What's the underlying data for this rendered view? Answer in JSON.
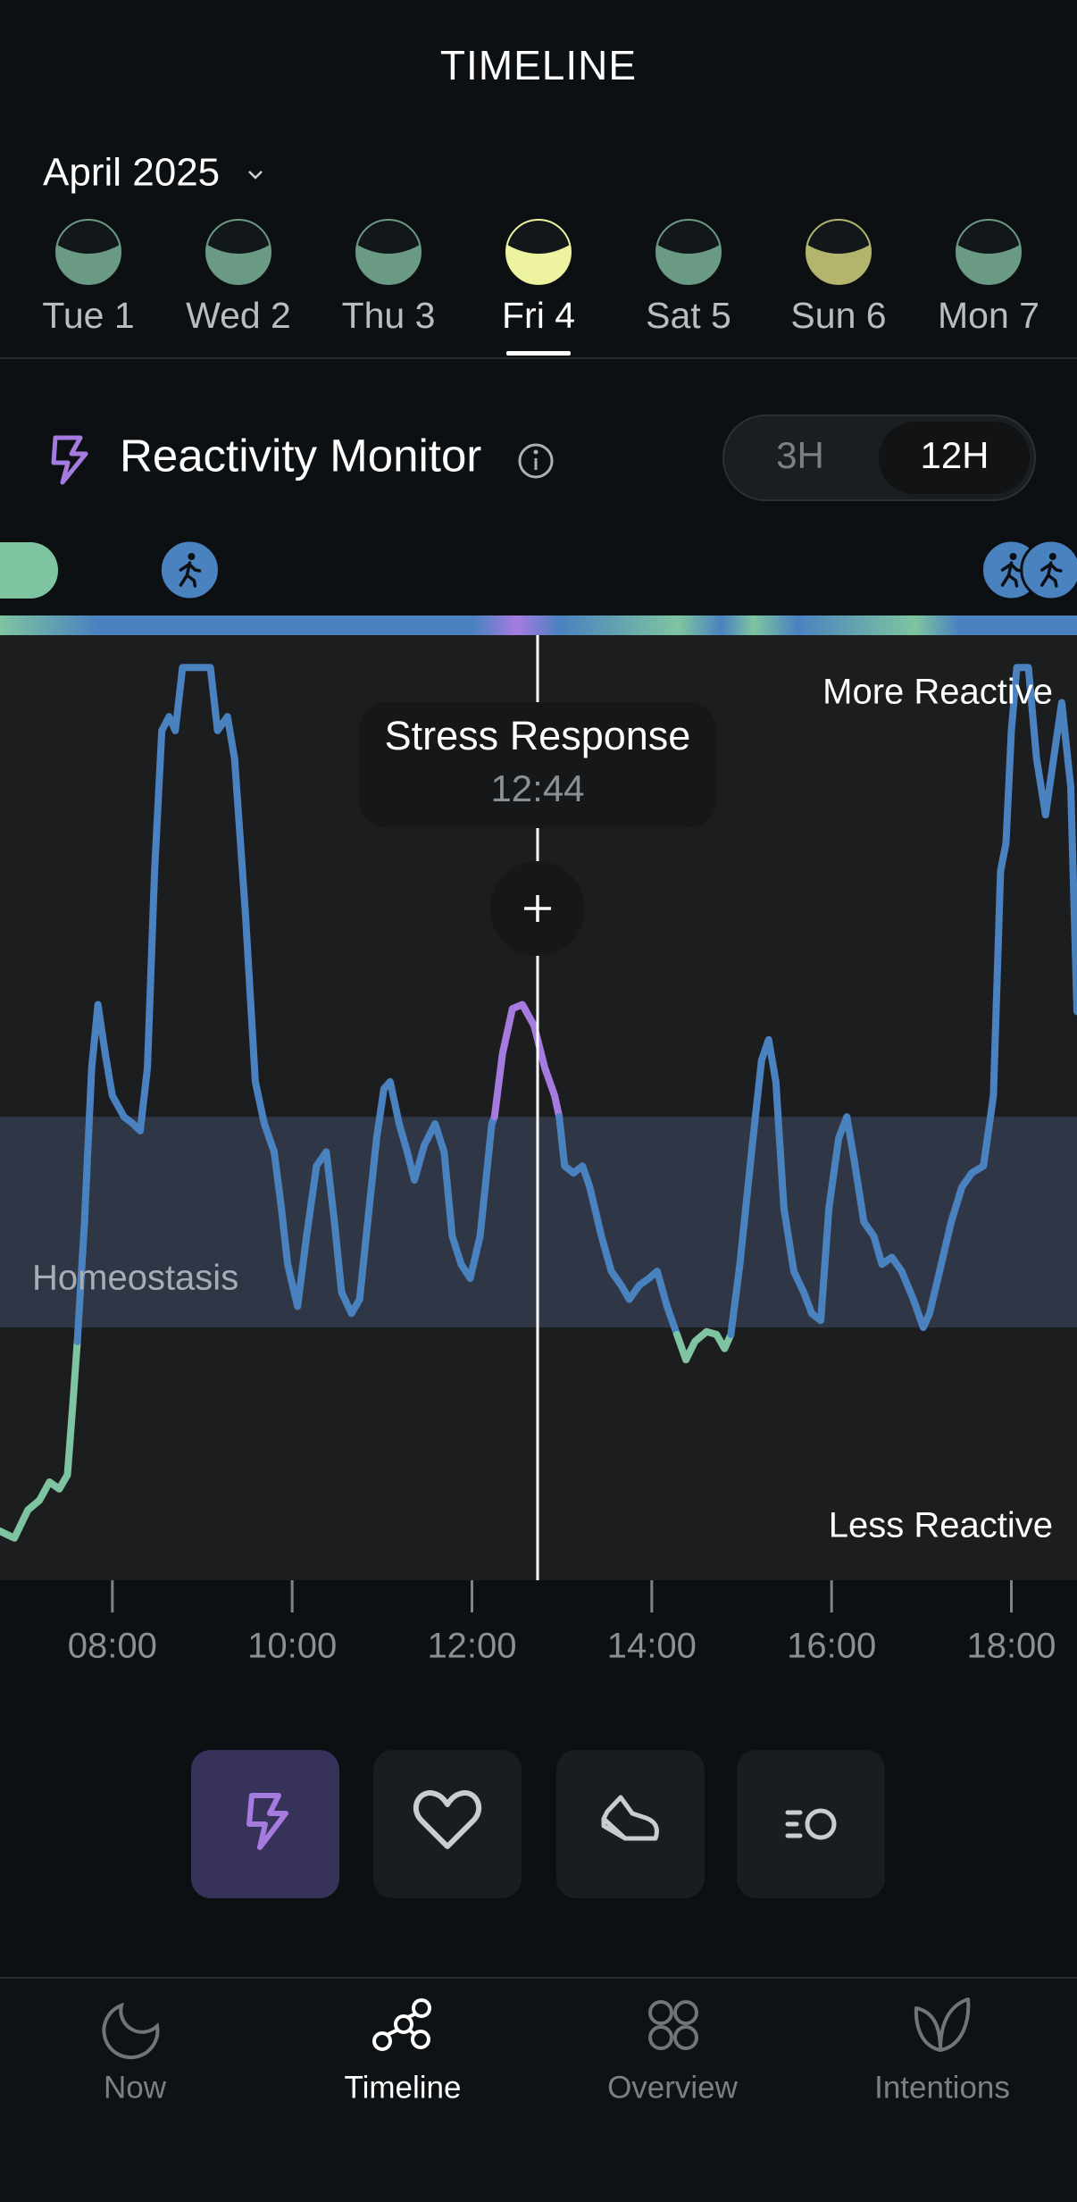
{
  "header": {
    "title": "TIMELINE",
    "month": "April 2025"
  },
  "days": [
    {
      "label": "Tue 1",
      "color": "#6b9a84"
    },
    {
      "label": "Wed 2",
      "color": "#6b9a84"
    },
    {
      "label": "Thu 3",
      "color": "#6b9a84"
    },
    {
      "label": "Fri 4",
      "color": "#eef3a0",
      "selected": true
    },
    {
      "label": "Sat 5",
      "color": "#6b9a84"
    },
    {
      "label": "Sun 6",
      "color": "#b3b46e"
    },
    {
      "label": "Mon 7",
      "color": "#6b9a84"
    }
  ],
  "monitor": {
    "title": "Reactivity Monitor",
    "ranges": [
      "3H",
      "12H"
    ]
  },
  "chart_data": {
    "type": "line",
    "labels": {
      "upper": "More Reactive",
      "lower": "Less Reactive",
      "band": "Homeostasis"
    },
    "tooltip": {
      "title": "Stress Response",
      "time": "12:44"
    },
    "cursor_x": 12.73,
    "homeostasis": [
      18,
      33
    ],
    "events_x": [
      8.86,
      18.0,
      18.44
    ],
    "xlim": [
      6.75,
      18.73
    ],
    "xticks": [
      {
        "value": 8,
        "label": "08:00"
      },
      {
        "value": 10,
        "label": "10:00"
      },
      {
        "value": 12,
        "label": "12:00"
      },
      {
        "value": 14,
        "label": "14:00"
      },
      {
        "value": 16,
        "label": "16:00"
      },
      {
        "value": 18,
        "label": "18:00"
      }
    ],
    "ylim": [
      0,
      67.3
    ],
    "series": [
      {
        "color": "#7fc4a0",
        "x": [
          6.75,
          6.91,
          7.06,
          7.19,
          7.3,
          7.41,
          7.5,
          7.56,
          7.61
        ],
        "values": [
          3.5,
          3.0,
          5.0,
          5.7,
          7.0,
          6.5,
          7.5,
          12.5,
          17.0
        ]
      },
      {
        "color": "#4a82c0",
        "x": [
          7.61,
          7.69,
          7.77,
          7.84,
          7.92,
          8.0,
          8.13,
          8.23,
          8.31,
          8.39,
          8.47,
          8.55,
          8.63,
          8.7,
          8.78,
          9.09,
          9.17,
          9.28,
          9.36,
          9.48,
          9.59,
          9.69,
          9.8,
          9.88,
          9.95,
          10.06,
          10.16,
          10.27,
          10.38,
          10.47,
          10.55,
          10.66,
          10.75,
          10.84,
          10.94,
          11.02,
          11.09,
          11.19,
          11.28,
          11.36,
          11.47,
          11.59,
          11.69,
          11.78,
          11.88,
          11.98,
          12.09,
          12.22,
          12.25
        ],
        "values": [
          17.0,
          25.5,
          36.5,
          41.0,
          37.5,
          34.5,
          33.0,
          32.5,
          32.0,
          36.5,
          50.5,
          60.5,
          61.5,
          60.5,
          65.0,
          65.0,
          60.5,
          61.5,
          58.5,
          47.5,
          35.5,
          32.5,
          30.5,
          26.5,
          22.5,
          19.5,
          24.5,
          29.5,
          30.5,
          25.5,
          20.5,
          19.0,
          20.0,
          25.5,
          31.5,
          35.0,
          35.5,
          32.5,
          30.5,
          28.5,
          31.0,
          32.5,
          30.5,
          24.5,
          22.5,
          21.5,
          24.5,
          32.5,
          33.0
        ]
      },
      {
        "color": "#a67be0",
        "x": [
          12.25,
          12.34,
          12.45,
          12.56,
          12.69,
          12.81,
          12.92,
          12.97
        ],
        "values": [
          33.0,
          37.5,
          40.7,
          41.0,
          39.5,
          36.5,
          34.5,
          33.0
        ]
      },
      {
        "color": "#4a82c0",
        "x": [
          12.97,
          13.03,
          13.13,
          13.23,
          13.31,
          13.44,
          13.55,
          13.66,
          13.75,
          13.86,
          13.97,
          14.06,
          14.17,
          14.28
        ],
        "values": [
          33.0,
          29.5,
          29.0,
          29.5,
          28.0,
          24.5,
          22.0,
          21.0,
          20.0,
          21.0,
          21.5,
          22.0,
          19.5,
          17.5
        ]
      },
      {
        "color": "#7fc4a0",
        "x": [
          14.28,
          14.38,
          14.48,
          14.61,
          14.72,
          14.81,
          14.88
        ],
        "values": [
          17.5,
          15.7,
          17.0,
          17.7,
          17.5,
          16.5,
          17.5
        ]
      },
      {
        "color": "#4a82c0",
        "x": [
          14.88,
          14.98,
          15.11,
          15.22,
          15.3,
          15.38,
          15.47,
          15.58,
          15.69,
          15.78,
          15.88,
          15.97,
          16.08,
          16.17,
          16.25,
          16.36,
          16.47,
          16.56,
          16.67,
          16.78,
          16.91,
          17.02,
          17.09,
          17.22,
          17.33,
          17.45,
          17.56,
          17.69,
          17.8,
          17.88,
          17.94,
          18.0,
          18.06,
          18.19,
          18.28,
          18.38,
          18.47,
          18.56,
          18.66,
          18.73
        ],
        "values": [
          17.5,
          22.5,
          30.5,
          37.0,
          38.5,
          35.5,
          26.5,
          22.0,
          20.5,
          19.0,
          18.5,
          26.5,
          31.5,
          33.0,
          30.0,
          25.5,
          24.5,
          22.5,
          23.0,
          22.0,
          20.0,
          18.0,
          19.0,
          22.5,
          25.5,
          28.0,
          29.0,
          29.5,
          34.5,
          50.5,
          52.5,
          60.5,
          65.0,
          65.0,
          58.5,
          54.5,
          58.5,
          62.5,
          56.5,
          40.5
        ]
      }
    ]
  },
  "nav": [
    "Now",
    "Timeline",
    "Overview",
    "Intentions"
  ]
}
